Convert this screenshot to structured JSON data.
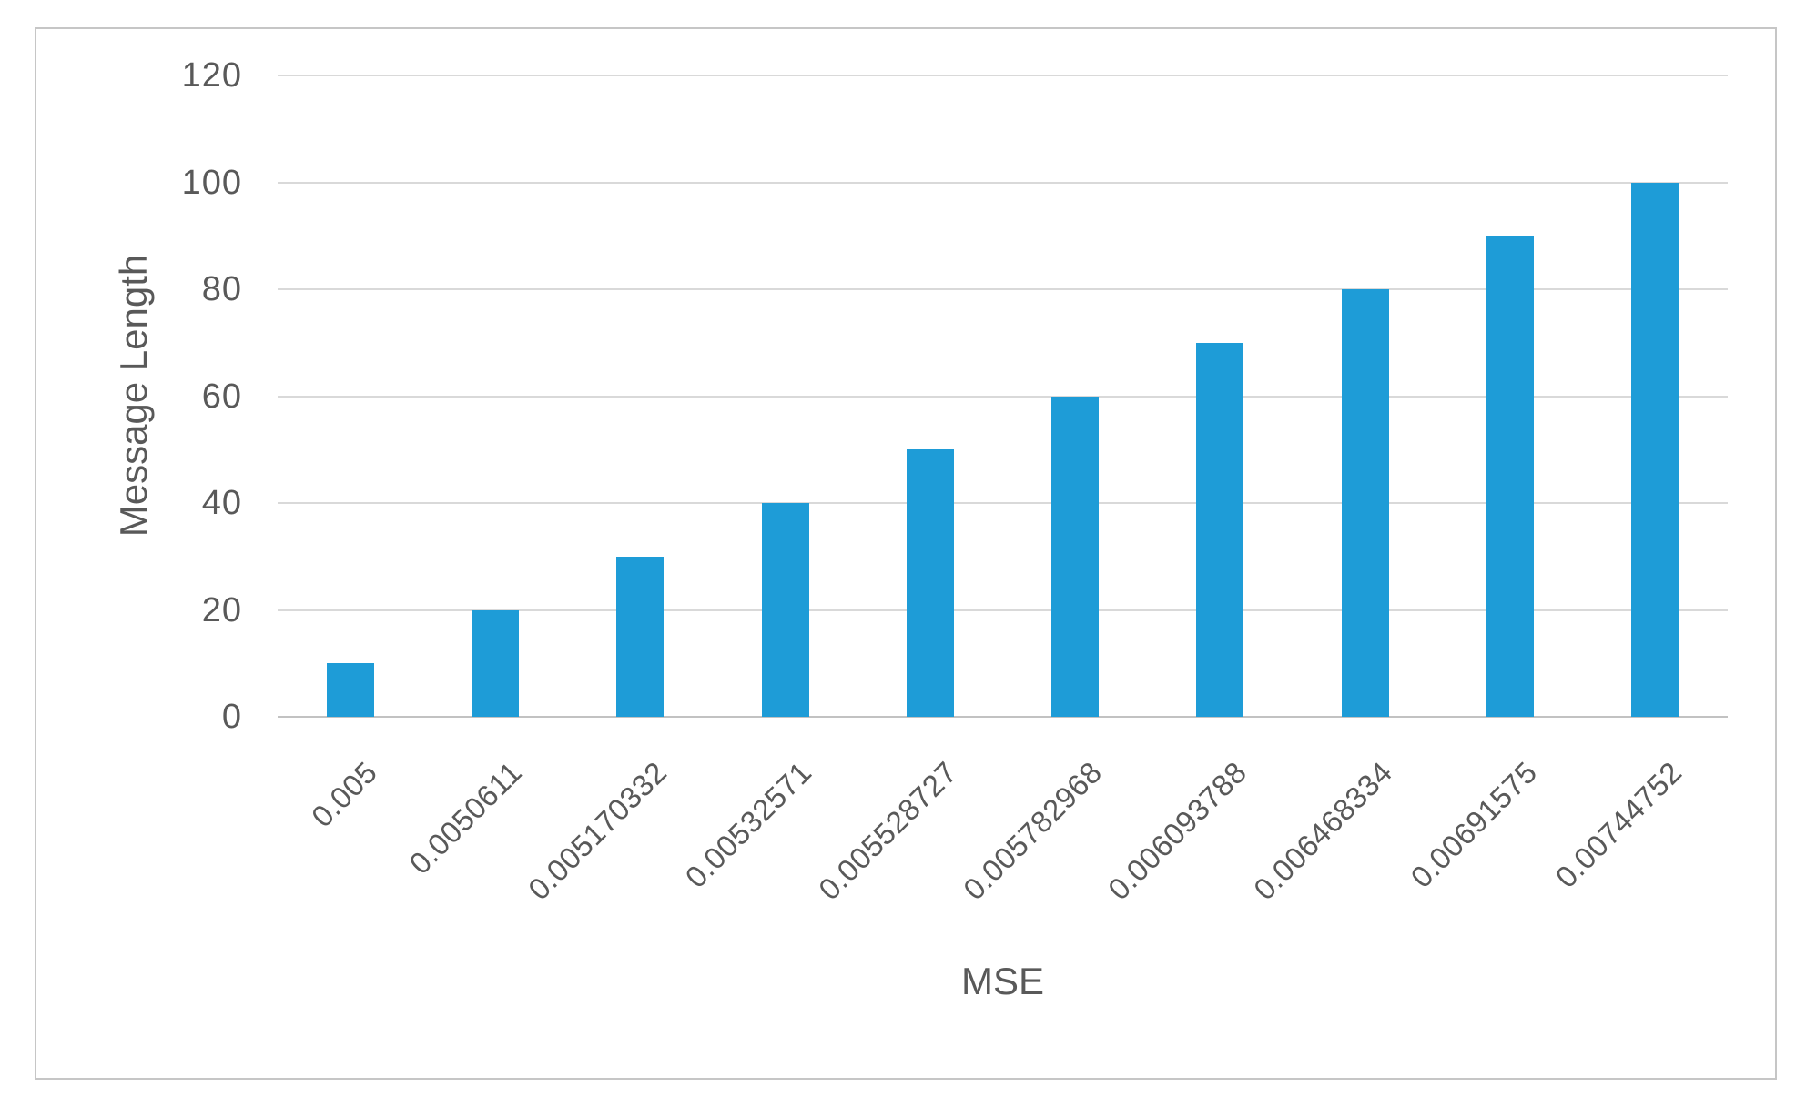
{
  "chart_data": {
    "type": "bar",
    "title": "",
    "categories": [
      "0.005",
      "0.0050611",
      "0.005170332",
      "0.00532571",
      "0.005528727",
      "0.005782968",
      "0.006093788",
      "0.006468334",
      "0.00691575",
      "0.00744752"
    ],
    "values": [
      10,
      20,
      30,
      40,
      50,
      60,
      70,
      80,
      90,
      100
    ],
    "xlabel": "MSE",
    "ylabel": "Message Length",
    "ylim": [
      0,
      120
    ],
    "yticks": [
      0,
      20,
      40,
      60,
      80,
      100,
      120
    ],
    "grid": true,
    "legend": false,
    "bar_color": "#1e9cd7",
    "gridline_color": "#d9d9d9",
    "axis_line_color": "#c2c2c2",
    "text_color": "#595959",
    "frame_border_color": "#c6c6c6"
  }
}
